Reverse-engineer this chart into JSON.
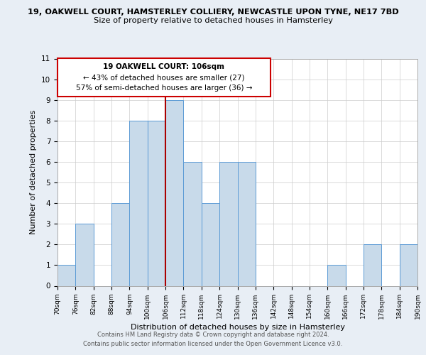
{
  "title_top": "19, OAKWELL COURT, HAMSTERLEY COLLIERY, NEWCASTLE UPON TYNE, NE17 7BD",
  "title_sub": "Size of property relative to detached houses in Hamsterley",
  "xlabel": "Distribution of detached houses by size in Hamsterley",
  "ylabel": "Number of detached properties",
  "bin_edges": [
    70,
    76,
    82,
    88,
    94,
    100,
    106,
    112,
    118,
    124,
    130,
    136,
    142,
    148,
    154,
    160,
    166,
    172,
    178,
    184,
    190
  ],
  "counts": [
    1,
    3,
    0,
    4,
    8,
    8,
    9,
    6,
    4,
    6,
    6,
    0,
    0,
    0,
    0,
    1,
    0,
    2,
    0,
    2
  ],
  "bar_color": "#c8daea",
  "bar_edge_color": "#5b9bd5",
  "vline_x": 106,
  "vline_color": "#aa0000",
  "annotation_title": "19 OAKWELL COURT: 106sqm",
  "annotation_line1": "← 43% of detached houses are smaller (27)",
  "annotation_line2": "57% of semi-detached houses are larger (36) →",
  "annotation_box_color": "#cc0000",
  "annotation_bg": "#ffffff",
  "ylim": [
    0,
    11
  ],
  "yticks": [
    0,
    1,
    2,
    3,
    4,
    5,
    6,
    7,
    8,
    9,
    10,
    11
  ],
  "footer1": "Contains HM Land Registry data © Crown copyright and database right 2024.",
  "footer2": "Contains public sector information licensed under the Open Government Licence v3.0.",
  "bg_color": "#e8eef5",
  "plot_bg_color": "#ffffff",
  "grid_color": "#cccccc"
}
